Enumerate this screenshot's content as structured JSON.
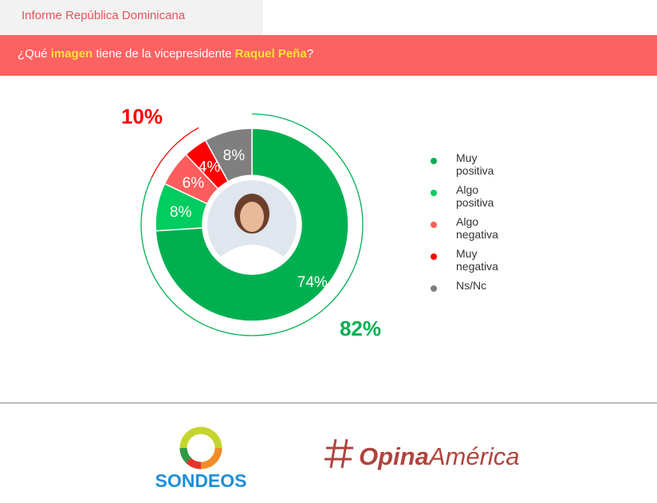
{
  "header": {
    "tab_label": "Informe República Dominicana",
    "question_parts": [
      {
        "text": "¿Qué ",
        "highlight": false
      },
      {
        "text": "imagen",
        "highlight": true
      },
      {
        "text": " tiene de la vicepresidente ",
        "highlight": false
      },
      {
        "text": "Raquel Peña",
        "highlight": true
      },
      {
        "text": "?",
        "highlight": false
      }
    ]
  },
  "chart_data": {
    "type": "pie",
    "style": "donut",
    "categories": [
      "Muy positiva",
      "Algo positiva",
      "Algo negativa",
      "Muy negativa",
      "Ns/Nc"
    ],
    "values": [
      74,
      8,
      6,
      4,
      8
    ],
    "labels": [
      "74%",
      "8%",
      "6%",
      "4%",
      "8%"
    ],
    "colors": [
      "#00b050",
      "#00cc60",
      "#fd5d5d",
      "#ff0000",
      "#7f7f7f"
    ],
    "groups": [
      {
        "label": "82%",
        "color": "#00b050",
        "segments": [
          "Muy positiva",
          "Algo positiva"
        ]
      },
      {
        "label": "10%",
        "color": "#ff0000",
        "segments": [
          "Algo negativa",
          "Muy negativa"
        ]
      }
    ],
    "legend_position": "right"
  },
  "footer": {
    "logo1": "SONDEOS",
    "logo2_a": "Opina",
    "logo2_b": "América"
  }
}
